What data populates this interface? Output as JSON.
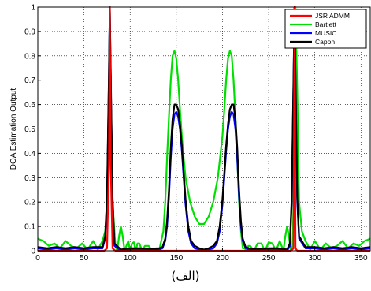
{
  "chart_data": {
    "type": "line",
    "title": "",
    "xlabel": "",
    "ylabel": "DOA Estimation Output",
    "xlim": [
      0,
      360
    ],
    "ylim": [
      0,
      1
    ],
    "x_ticks": [
      0,
      50,
      100,
      150,
      200,
      250,
      300,
      350
    ],
    "y_ticks": [
      0,
      0.1,
      0.2,
      0.3,
      0.4,
      0.5,
      0.6,
      0.7,
      0.8,
      0.9,
      1
    ],
    "grid": true,
    "legend_position": "top-right",
    "series": [
      {
        "name": "JSR ADMM",
        "color": "#ff0000",
        "x": [
          0,
          72,
          75,
          77,
          78,
          79,
          81,
          84,
          88,
          270,
          274,
          277,
          278,
          279,
          281,
          284,
          360
        ],
        "y": [
          0,
          0,
          0.01,
          0.35,
          1.0,
          0.35,
          0.01,
          0.0,
          0,
          0,
          0,
          0.01,
          1.0,
          0.01,
          0.0,
          0,
          0
        ]
      },
      {
        "name": "Bartlett",
        "color": "#00e000",
        "x": [
          0,
          6,
          12,
          18,
          24,
          30,
          36,
          42,
          48,
          54,
          60,
          65,
          70,
          73,
          75,
          77,
          78,
          79,
          81,
          84,
          86,
          88,
          90,
          92,
          94,
          96,
          98,
          100,
          102,
          104,
          106,
          108,
          110,
          113,
          116,
          120,
          124,
          128,
          132,
          136,
          138,
          140,
          142,
          144,
          146,
          148,
          150,
          152,
          154,
          156,
          158,
          160,
          165,
          170,
          175,
          180,
          185,
          190,
          195,
          200,
          202,
          204,
          206,
          208,
          210,
          212,
          214,
          216,
          218,
          220,
          222,
          224,
          226,
          228,
          230,
          234,
          238,
          242,
          246,
          250,
          254,
          258,
          262,
          264,
          266,
          268,
          270,
          272,
          274,
          276,
          277,
          278,
          279,
          281,
          283,
          286,
          290,
          295,
          300,
          306,
          312,
          318,
          324,
          330,
          336,
          342,
          348,
          354,
          360
        ],
        "y": [
          0.05,
          0.04,
          0.02,
          0.03,
          0.01,
          0.04,
          0.02,
          0.01,
          0.03,
          0.005,
          0.04,
          0.005,
          0.04,
          0.08,
          0.2,
          0.65,
          1.0,
          0.65,
          0.2,
          0.02,
          0.0,
          0.06,
          0.1,
          0.06,
          0.0,
          0.02,
          0.04,
          0.0,
          0.03,
          0.035,
          0.0,
          0.03,
          0.03,
          0.0,
          0.02,
          0.02,
          0.0,
          0.01,
          0.01,
          0.08,
          0.2,
          0.38,
          0.55,
          0.7,
          0.8,
          0.82,
          0.79,
          0.7,
          0.58,
          0.47,
          0.38,
          0.3,
          0.2,
          0.14,
          0.11,
          0.11,
          0.14,
          0.2,
          0.3,
          0.47,
          0.58,
          0.7,
          0.79,
          0.82,
          0.8,
          0.7,
          0.55,
          0.38,
          0.2,
          0.08,
          0.01,
          0.01,
          0.0,
          0.02,
          0.02,
          0.0,
          0.03,
          0.03,
          0.0,
          0.035,
          0.03,
          0.0,
          0.04,
          0.02,
          0.0,
          0.06,
          0.1,
          0.06,
          0.0,
          0.02,
          0.2,
          0.65,
          1.0,
          0.65,
          0.2,
          0.08,
          0.04,
          0.005,
          0.04,
          0.005,
          0.03,
          0.01,
          0.02,
          0.04,
          0.01,
          0.03,
          0.02,
          0.04,
          0.05
        ]
      },
      {
        "name": "MUSIC",
        "color": "#0000ff",
        "x": [
          0,
          10,
          20,
          30,
          40,
          50,
          60,
          70,
          73,
          75,
          77,
          78,
          79,
          81,
          83,
          90,
          100,
          110,
          120,
          130,
          135,
          138,
          140,
          142,
          144,
          146,
          148,
          150,
          152,
          154,
          156,
          158,
          160,
          163,
          166,
          170,
          175,
          180,
          185,
          190,
          194,
          197,
          200,
          202,
          204,
          206,
          208,
          210,
          212,
          214,
          216,
          218,
          220,
          222,
          225,
          230,
          240,
          250,
          260,
          270,
          273,
          275,
          277,
          278,
          279,
          281,
          283,
          290,
          300,
          310,
          320,
          330,
          340,
          350,
          360
        ],
        "y": [
          0.01,
          0.005,
          0.01,
          0.005,
          0.01,
          0.005,
          0.01,
          0.01,
          0.05,
          0.2,
          0.7,
          1.0,
          0.7,
          0.2,
          0.02,
          0.0,
          0.005,
          0.005,
          0.003,
          0.003,
          0.01,
          0.04,
          0.1,
          0.22,
          0.38,
          0.5,
          0.56,
          0.57,
          0.55,
          0.5,
          0.41,
          0.3,
          0.19,
          0.08,
          0.03,
          0.01,
          0.005,
          0.0,
          0.005,
          0.01,
          0.03,
          0.08,
          0.19,
          0.3,
          0.41,
          0.5,
          0.55,
          0.57,
          0.56,
          0.5,
          0.38,
          0.22,
          0.1,
          0.04,
          0.01,
          0.003,
          0.003,
          0.005,
          0.005,
          0.0,
          0.02,
          0.2,
          0.7,
          1.0,
          0.7,
          0.2,
          0.05,
          0.01,
          0.01,
          0.005,
          0.01,
          0.005,
          0.01,
          0.005,
          0.01
        ]
      },
      {
        "name": "Capon",
        "color": "#000000",
        "x": [
          0,
          10,
          20,
          30,
          40,
          50,
          60,
          70,
          73,
          75,
          77,
          78,
          79,
          81,
          83,
          90,
          100,
          110,
          120,
          130,
          135,
          138,
          140,
          142,
          144,
          146,
          148,
          150,
          152,
          154,
          156,
          158,
          160,
          163,
          166,
          170,
          175,
          180,
          185,
          190,
          194,
          197,
          200,
          202,
          204,
          206,
          208,
          210,
          212,
          214,
          216,
          218,
          220,
          222,
          225,
          230,
          240,
          250,
          260,
          270,
          273,
          275,
          277,
          278,
          279,
          281,
          283,
          290,
          300,
          310,
          320,
          330,
          340,
          350,
          360
        ],
        "y": [
          0.015,
          0.01,
          0.015,
          0.01,
          0.015,
          0.01,
          0.015,
          0.015,
          0.06,
          0.22,
          0.72,
          1.0,
          0.72,
          0.22,
          0.03,
          0.005,
          0.01,
          0.01,
          0.008,
          0.008,
          0.015,
          0.05,
          0.12,
          0.25,
          0.42,
          0.54,
          0.6,
          0.6,
          0.58,
          0.52,
          0.43,
          0.32,
          0.21,
          0.1,
          0.04,
          0.02,
          0.01,
          0.005,
          0.01,
          0.02,
          0.04,
          0.1,
          0.21,
          0.32,
          0.43,
          0.52,
          0.58,
          0.6,
          0.6,
          0.54,
          0.42,
          0.25,
          0.12,
          0.05,
          0.015,
          0.008,
          0.008,
          0.01,
          0.01,
          0.005,
          0.03,
          0.22,
          0.72,
          1.0,
          0.72,
          0.22,
          0.06,
          0.015,
          0.015,
          0.01,
          0.015,
          0.01,
          0.015,
          0.01,
          0.015
        ]
      }
    ]
  },
  "caption": "(الف)"
}
